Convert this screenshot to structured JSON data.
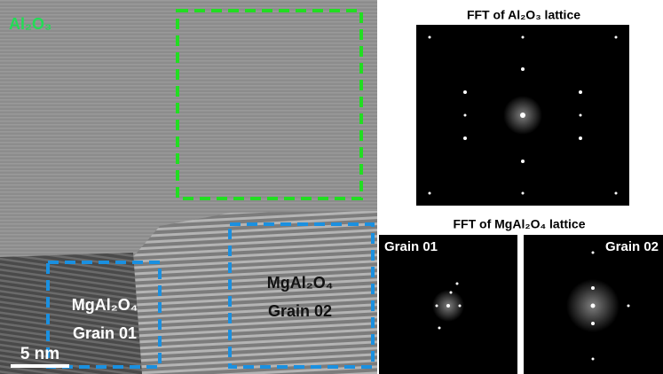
{
  "image": {
    "phase_label": "Al₂O₃",
    "scale_bar": "5 nm",
    "regions": [
      {
        "title": "MgAl₂O₄",
        "grain": "Grain 01"
      },
      {
        "title": "MgAl₂O₄",
        "grain": "Grain 02"
      }
    ]
  },
  "fft": {
    "al2o3_title": "FFT of Al₂O₃ lattice",
    "mgal2o4_title": "FFT of MgAl₂O₄ lattice",
    "grains": [
      "Grain 01",
      "Grain 02"
    ]
  }
}
